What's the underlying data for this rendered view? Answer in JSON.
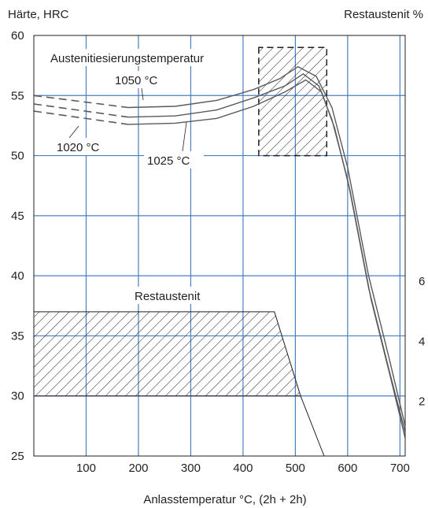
{
  "chart_data": {
    "type": "line",
    "ylabel_left": "Härte, HRC",
    "ylabel_right": "Restaustenit %",
    "xlabel": "Anlasstemperatur °C, (2h + 2h)",
    "x_ticks": [
      "100",
      "200",
      "300",
      "400",
      "500",
      "600",
      "700"
    ],
    "x_tick_values": [
      100,
      200,
      300,
      400,
      500,
      600,
      700
    ],
    "xlim": [
      0,
      710
    ],
    "y_ticks": [
      "25",
      "30",
      "35",
      "40",
      "45",
      "50",
      "55",
      "60"
    ],
    "y_tick_values": [
      25,
      30,
      35,
      40,
      45,
      50,
      55,
      60
    ],
    "ylim": [
      25,
      60
    ],
    "right_ticks": [
      {
        "label": "6",
        "hrc": 40
      },
      {
        "label": "4",
        "hrc": 35
      },
      {
        "label": "2",
        "hrc": 30
      }
    ],
    "grid": true,
    "annotations": {
      "austenitizing": "Austenitiesierungstemperatur",
      "t1050": "1050 °C",
      "t1020": "1020 °C",
      "t1025": "1025 °C",
      "retained": "Restaustenit"
    },
    "series": [
      {
        "name": "1050 °C",
        "dashed_until": 180,
        "x": [
          0,
          180,
          270,
          350,
          420,
          470,
          505,
          540,
          570,
          600,
          640,
          680,
          710
        ],
        "y": [
          55,
          54.0,
          54.1,
          54.6,
          55.5,
          56.4,
          57.4,
          56.6,
          54.0,
          49.0,
          40.0,
          33.0,
          27.5
        ]
      },
      {
        "name": "1025 °C",
        "dashed_until": 180,
        "x": [
          0,
          180,
          270,
          350,
          420,
          480,
          515,
          545,
          570,
          600,
          640,
          680,
          710
        ],
        "y": [
          54.3,
          53.2,
          53.3,
          53.8,
          54.8,
          55.8,
          56.8,
          55.8,
          53.0,
          48.0,
          39.0,
          32.0,
          27.0
        ]
      },
      {
        "name": "1020 °C",
        "dashed_until": 180,
        "x": [
          0,
          180,
          270,
          350,
          420,
          480,
          520,
          550,
          575,
          605,
          645,
          685,
          710
        ],
        "y": [
          53.7,
          52.6,
          52.7,
          53.1,
          54.1,
          55.3,
          56.3,
          55.3,
          52.3,
          47.0,
          38.0,
          31.0,
          26.5
        ]
      }
    ],
    "hatched_regions": [
      {
        "name": "upper",
        "x": [
          430,
          430,
          560,
          560
        ],
        "y": [
          59,
          50,
          50,
          59
        ],
        "dashed_edges": true
      },
      {
        "name": "Restaustenit",
        "x": [
          0,
          0,
          460,
          510,
          555,
          510,
          0
        ],
        "y": [
          30,
          37,
          37,
          30,
          25,
          30,
          30
        ],
        "dashed_edges": false
      }
    ]
  }
}
